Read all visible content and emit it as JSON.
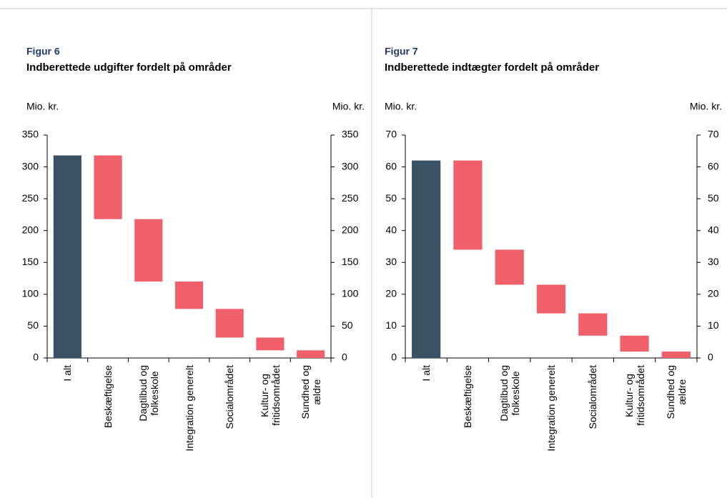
{
  "chart_data": [
    {
      "type": "waterfall",
      "figure_label": "Figur 6",
      "title": "Indberettede udgifter fordelt på områder",
      "y_label": "Mio. kr.",
      "y2_label": "Mio. kr.",
      "categories": [
        "I alt",
        "Beskæftigelse",
        "Dagtilbud og\nfolkeskole",
        "Integration generelt",
        "Socialområdet",
        "Kultur- og\nfritidsområdet",
        "Sundhed og\nældre"
      ],
      "values": [
        318,
        100,
        98,
        43,
        45,
        20,
        12
      ],
      "total_color": "#3b5264",
      "color": "#f0606a",
      "ylim": [
        0,
        350
      ],
      "yticks": [
        0,
        50,
        100,
        150,
        200,
        250,
        300,
        350
      ],
      "y2lim": [
        0,
        350
      ],
      "y2ticks": [
        0,
        50,
        100,
        150,
        200,
        250,
        300,
        350
      ]
    },
    {
      "type": "waterfall",
      "figure_label": "Figur 7",
      "title": "Indberettede indtægter fordelt på områder",
      "y_label": "Mio. kr.",
      "y2_label": "Mio. kr.",
      "categories": [
        "I alt",
        "Beskæftigelse",
        "Dagtilbud og\nfolkeskole",
        "Integration generelt",
        "Socialområdet",
        "Kultur- og\nfritidsområdet",
        "Sundhed og\nældre"
      ],
      "values": [
        62,
        28,
        11,
        9,
        7,
        5,
        2
      ],
      "total_color": "#3b5264",
      "color": "#f0606a",
      "ylim": [
        0,
        70
      ],
      "yticks": [
        0,
        10,
        20,
        30,
        40,
        50,
        60,
        70
      ],
      "y2lim": [
        0,
        70
      ],
      "y2ticks": [
        0,
        10,
        20,
        30,
        40,
        50,
        60,
        70
      ]
    }
  ]
}
